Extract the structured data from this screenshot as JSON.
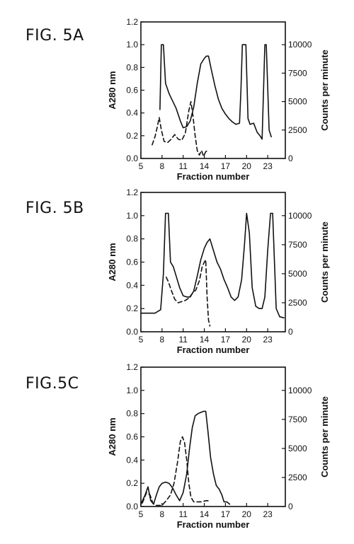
{
  "chart_data": [
    {
      "fig_label": "FIG. 5A",
      "type": "line",
      "xlabel": "Fraction number",
      "ylabel": "A280 nm",
      "y2label": "Counts per minute",
      "xlim": [
        5,
        25.5
      ],
      "ylim": [
        0,
        1.2
      ],
      "y2lim": [
        0,
        12000
      ],
      "xticks": [
        5,
        8,
        11,
        14,
        17,
        20,
        23
      ],
      "yticks": [
        0.0,
        0.2,
        0.4,
        0.6,
        0.8,
        1.0,
        1.2
      ],
      "y2ticks": [
        0,
        2500,
        5000,
        7500,
        10000
      ],
      "series": [
        {
          "style": "solid",
          "axis": "left",
          "x": [
            7.7,
            7.9,
            8.2,
            8.5,
            9,
            10,
            10.6,
            11,
            11.5,
            12,
            12.5,
            13,
            13.5,
            14,
            14.3,
            14.6,
            15,
            15.5,
            16,
            16.5,
            17,
            17.5,
            18,
            18.5,
            19,
            19.2,
            19.4,
            19.9,
            20.2,
            20.5,
            21,
            21.5,
            21.9,
            22.2,
            22.6,
            22.8,
            23.2,
            23.5
          ],
          "y": [
            0.43,
            1.0,
            1.0,
            0.66,
            0.57,
            0.44,
            0.33,
            0.27,
            0.28,
            0.33,
            0.45,
            0.66,
            0.83,
            0.88,
            0.9,
            0.9,
            0.78,
            0.64,
            0.52,
            0.44,
            0.39,
            0.35,
            0.32,
            0.3,
            0.31,
            0.6,
            1.0,
            1.0,
            0.35,
            0.3,
            0.31,
            0.23,
            0.2,
            0.17,
            1.0,
            1.0,
            0.25,
            0.19
          ]
        },
        {
          "style": "dashed",
          "axis": "left",
          "x": [
            6.6,
            7.0,
            7.3,
            7.6,
            7.9,
            8.3,
            8.8,
            9.3,
            9.8,
            10.3,
            10.8,
            11.3,
            11.8,
            12.1,
            12.4,
            12.7,
            13.0,
            13.3,
            13.6,
            13.9,
            14.2,
            14.5
          ],
          "y": [
            0.12,
            0.19,
            0.27,
            0.36,
            0.25,
            0.15,
            0.14,
            0.17,
            0.21,
            0.17,
            0.16,
            0.22,
            0.42,
            0.5,
            0.37,
            0.2,
            0.07,
            0.03,
            0.07,
            0.02,
            0.06,
            0.07
          ]
        }
      ]
    },
    {
      "fig_label": "FIG. 5B",
      "type": "line",
      "xlabel": "Fraction number",
      "ylabel": "A280 nm",
      "y2label": "Counts per minute",
      "xlim": [
        5,
        25.5
      ],
      "ylim": [
        0,
        1.2
      ],
      "y2lim": [
        0,
        12000
      ],
      "xticks": [
        5,
        8,
        11,
        14,
        17,
        20,
        23
      ],
      "yticks": [
        0.0,
        0.2,
        0.4,
        0.6,
        0.8,
        1.0,
        1.2
      ],
      "y2ticks": [
        0,
        2500,
        5000,
        7500,
        10000
      ],
      "series": [
        {
          "style": "solid",
          "axis": "left",
          "x": [
            5,
            6,
            7,
            7.8,
            8.2,
            8.5,
            8.9,
            9.2,
            9.6,
            10,
            10.5,
            11,
            11.5,
            12,
            12.5,
            13,
            13.5,
            14,
            14.4,
            14.8,
            15.3,
            15.8,
            16.3,
            16.8,
            17.3,
            17.8,
            18.3,
            18.8,
            19.3,
            19.7,
            20.0,
            20.4,
            20.8,
            21.3,
            21.8,
            22.2,
            22.6,
            23.0,
            23.4,
            23.7,
            24.2,
            24.7,
            25.3
          ],
          "y": [
            0.16,
            0.16,
            0.16,
            0.19,
            0.5,
            1.02,
            1.02,
            0.6,
            0.56,
            0.48,
            0.38,
            0.31,
            0.3,
            0.3,
            0.35,
            0.48,
            0.62,
            0.72,
            0.77,
            0.8,
            0.7,
            0.6,
            0.54,
            0.45,
            0.38,
            0.3,
            0.27,
            0.3,
            0.45,
            0.75,
            1.02,
            0.85,
            0.38,
            0.22,
            0.2,
            0.2,
            0.3,
            0.7,
            1.02,
            1.02,
            0.2,
            0.13,
            0.12
          ]
        },
        {
          "style": "dashed",
          "axis": "left",
          "x": [
            8.6,
            8.9,
            9.3,
            9.8,
            10.3,
            10.8,
            11.3,
            11.8,
            12.3,
            12.8,
            13.3,
            13.7,
            14.0,
            14.2,
            14.4,
            14.6,
            14.8
          ],
          "y": [
            0.47,
            0.43,
            0.36,
            0.28,
            0.25,
            0.26,
            0.27,
            0.29,
            0.33,
            0.36,
            0.44,
            0.56,
            0.6,
            0.62,
            0.3,
            0.1,
            0.05
          ]
        }
      ]
    },
    {
      "fig_label": "FIG.5C",
      "type": "line",
      "xlabel": "Fraction number",
      "ylabel": "A280 nm",
      "y2label": "Counts per minute",
      "xlim": [
        5,
        25.5
      ],
      "ylim": [
        0,
        1.2
      ],
      "y2lim": [
        0,
        12000
      ],
      "xticks": [
        5,
        8,
        11,
        14,
        17,
        20,
        23
      ],
      "yticks": [
        0.0,
        0.2,
        0.4,
        0.6,
        0.8,
        1.0,
        1.2
      ],
      "y2ticks": [
        0,
        2500,
        5000,
        7500,
        10000
      ],
      "series": [
        {
          "style": "solid",
          "axis": "left",
          "x": [
            5,
            5.6,
            6.0,
            6.4,
            6.8,
            7.2,
            7.6,
            8.0,
            8.5,
            9.0,
            9.5,
            10.0,
            10.5,
            11.0,
            11.5,
            11.9,
            12.3,
            12.7,
            13.1,
            13.5,
            13.9,
            14.2,
            14.5,
            14.9,
            15.3,
            15.7,
            16.1,
            16.5,
            16.8,
            17.2,
            17.6
          ],
          "y": [
            0.02,
            0.1,
            0.17,
            0.05,
            0.02,
            0.1,
            0.17,
            0.2,
            0.21,
            0.2,
            0.16,
            0.1,
            0.05,
            0.12,
            0.28,
            0.5,
            0.68,
            0.78,
            0.8,
            0.81,
            0.82,
            0.82,
            0.66,
            0.42,
            0.28,
            0.18,
            0.15,
            0.1,
            0.04,
            0.04,
            0.02
          ]
        },
        {
          "style": "dashed",
          "axis": "left",
          "x": [
            5.2,
            5.8,
            6.3,
            6.7,
            7.1,
            7.5,
            8.0,
            8.6,
            9.2,
            9.7,
            10.2,
            10.6,
            10.9,
            11.2,
            11.5,
            11.8,
            12.1,
            12.5,
            13.0,
            13.6,
            14.2,
            14.8
          ],
          "y": [
            0.03,
            0.12,
            0.1,
            0.03,
            0.01,
            0.01,
            0.01,
            0.05,
            0.1,
            0.2,
            0.38,
            0.56,
            0.6,
            0.55,
            0.4,
            0.2,
            0.08,
            0.04,
            0.04,
            0.04,
            0.05,
            0.05
          ]
        }
      ]
    }
  ]
}
